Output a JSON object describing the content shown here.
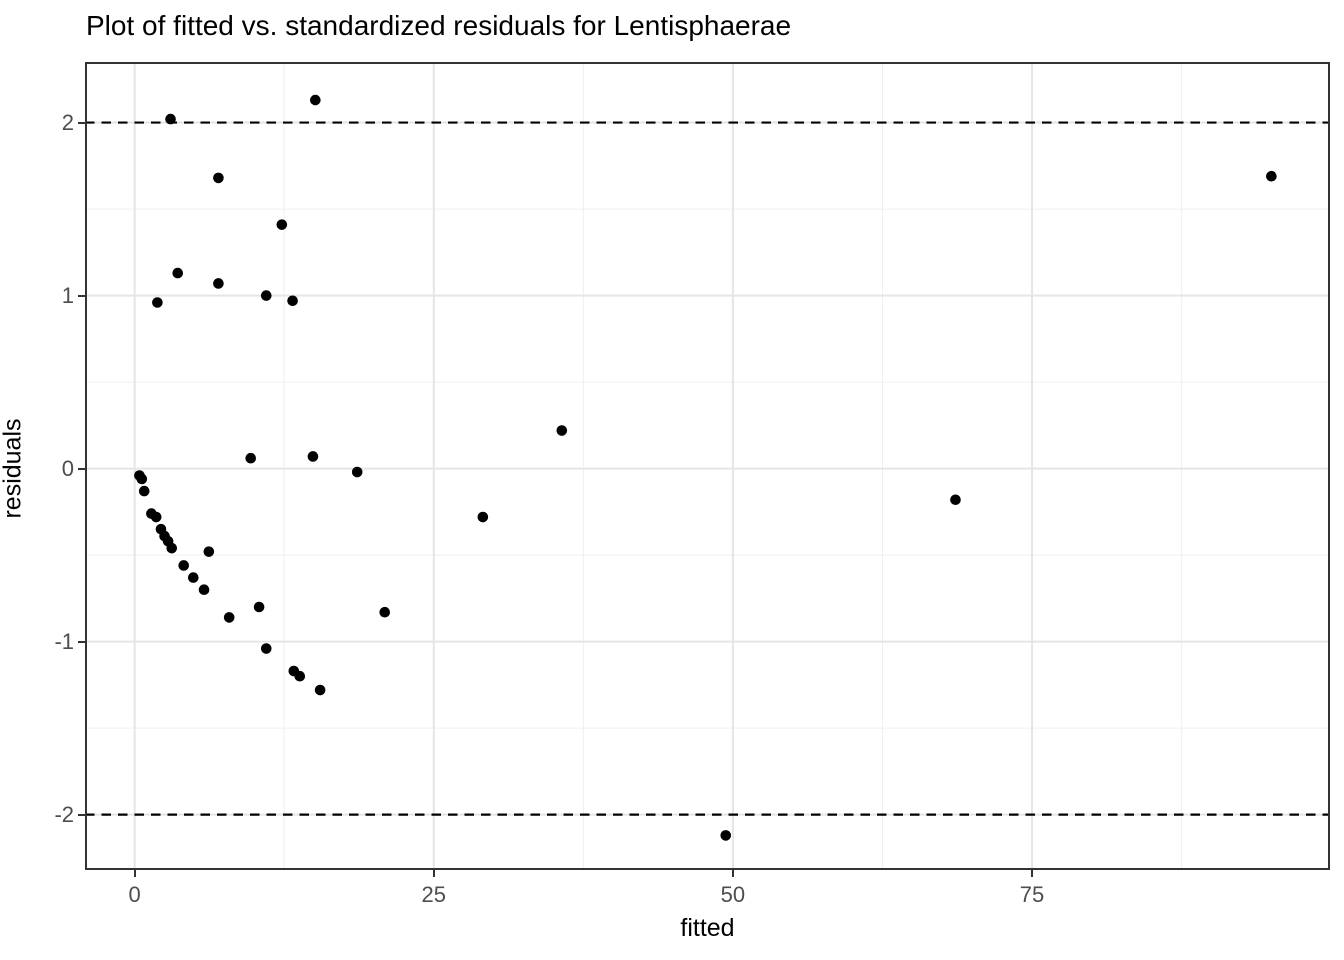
{
  "title": "Plot of fitted vs. standardized residuals for Lentisphaerae",
  "colors": {
    "background": "#ffffff",
    "point": "#000000",
    "reference_line": "#000000",
    "panel_border": "#333333",
    "grid_major": "#e5e5e5",
    "grid_minor": "#efefef",
    "tick": "#333333",
    "tick_label": "#4d4d4d",
    "title_text": "#000000"
  },
  "chart_data": {
    "type": "scatter",
    "title": "Plot of fitted vs. standardized residuals for Lentisphaerae",
    "xlabel": "fitted",
    "ylabel": "residuals",
    "xlim": [
      -4.15,
      99.9
    ],
    "ylim": [
      -2.32,
      2.35
    ],
    "x_ticks": [
      0,
      25,
      50,
      75
    ],
    "y_ticks": [
      -2,
      -1,
      0,
      1,
      2
    ],
    "x_minor_ticks": [
      12.5,
      37.5,
      62.5,
      87.5
    ],
    "y_minor_ticks": [
      -1.5,
      -0.5,
      0.5,
      1.5
    ],
    "grid": "on",
    "legend": "none",
    "reference_lines": [
      {
        "axis": "y",
        "value": 2,
        "style": "dashed"
      },
      {
        "axis": "y",
        "value": -2,
        "style": "dashed"
      }
    ],
    "series": [
      {
        "name": "standardized residuals",
        "points": [
          [
            0.4,
            -0.04
          ],
          [
            0.6,
            -0.06
          ],
          [
            0.8,
            -0.13
          ],
          [
            1.4,
            -0.26
          ],
          [
            1.8,
            -0.28
          ],
          [
            1.9,
            0.96
          ],
          [
            2.2,
            -0.35
          ],
          [
            2.5,
            -0.39
          ],
          [
            2.8,
            -0.42
          ],
          [
            3.0,
            2.02
          ],
          [
            3.1,
            -0.46
          ],
          [
            3.6,
            1.13
          ],
          [
            4.1,
            -0.56
          ],
          [
            4.9,
            -0.63
          ],
          [
            5.8,
            -0.7
          ],
          [
            6.2,
            -0.48
          ],
          [
            7.0,
            1.07
          ],
          [
            7.0,
            1.68
          ],
          [
            7.9,
            -0.86
          ],
          [
            9.7,
            0.06
          ],
          [
            10.4,
            -0.8
          ],
          [
            11.0,
            -1.04
          ],
          [
            11.0,
            1.0
          ],
          [
            12.3,
            1.41
          ],
          [
            13.2,
            0.97
          ],
          [
            13.3,
            -1.17
          ],
          [
            13.8,
            -1.2
          ],
          [
            14.9,
            0.07
          ],
          [
            15.1,
            2.13
          ],
          [
            15.5,
            -1.28
          ],
          [
            18.6,
            -0.02
          ],
          [
            20.9,
            -0.83
          ],
          [
            29.1,
            -0.28
          ],
          [
            35.7,
            0.22
          ],
          [
            49.4,
            -2.12
          ],
          [
            68.6,
            -0.18
          ],
          [
            95.0,
            1.69
          ]
        ]
      }
    ]
  }
}
